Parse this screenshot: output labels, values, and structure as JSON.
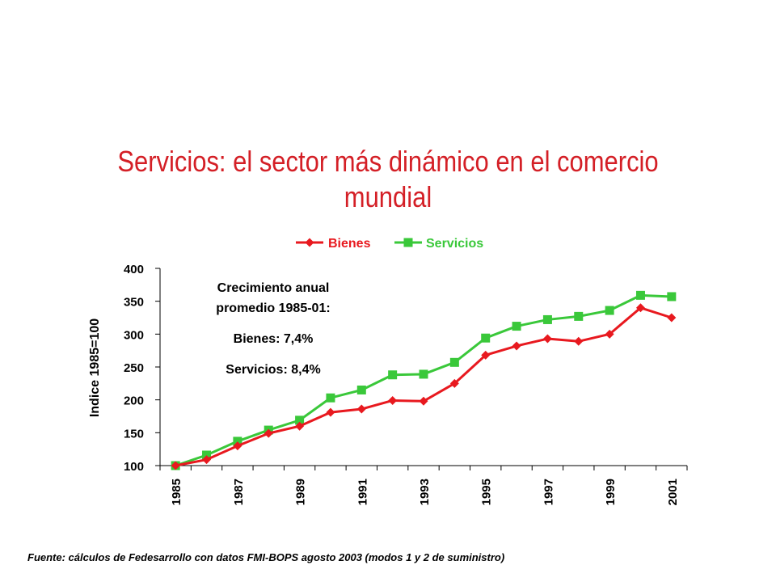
{
  "page": {
    "title": "Servicios: el sector más dinámico en el comercio mundial",
    "footnote": "Fuente: cálculos de Fedesarrollo con datos FMI-BOPS agosto 2003 (modos 1 y 2 de suministro)"
  },
  "annotation": {
    "line1": "Crecimiento anual",
    "line2": "promedio 1985-01:",
    "line3": "Bienes: 7,4%",
    "line4": "Servicios: 8,4%"
  },
  "chart_data": {
    "type": "line",
    "ylabel": "Indice 1985=100",
    "xlabel": "",
    "ylim": [
      100,
      400
    ],
    "yticks": [
      100,
      150,
      200,
      250,
      300,
      350,
      400
    ],
    "x": [
      1985,
      1986,
      1987,
      1988,
      1989,
      1990,
      1991,
      1992,
      1993,
      1994,
      1995,
      1996,
      1997,
      1998,
      1999,
      2000,
      2001
    ],
    "xtick_labels": [
      "1985",
      "1987",
      "1989",
      "1991",
      "1993",
      "1995",
      "1997",
      "1999",
      "2001"
    ],
    "legend_position": "top",
    "grid": false,
    "series": [
      {
        "name": "Bienes",
        "color": "#e8191f",
        "marker": "diamond",
        "values": [
          100,
          109,
          130,
          149,
          160,
          181,
          186,
          199,
          198,
          225,
          268,
          282,
          293,
          289,
          300,
          340,
          325
        ]
      },
      {
        "name": "Servicios",
        "color": "#3ac83a",
        "marker": "square",
        "values": [
          100,
          116,
          137,
          154,
          169,
          203,
          215,
          238,
          239,
          257,
          294,
          312,
          322,
          327,
          336,
          359,
          357
        ]
      }
    ]
  }
}
